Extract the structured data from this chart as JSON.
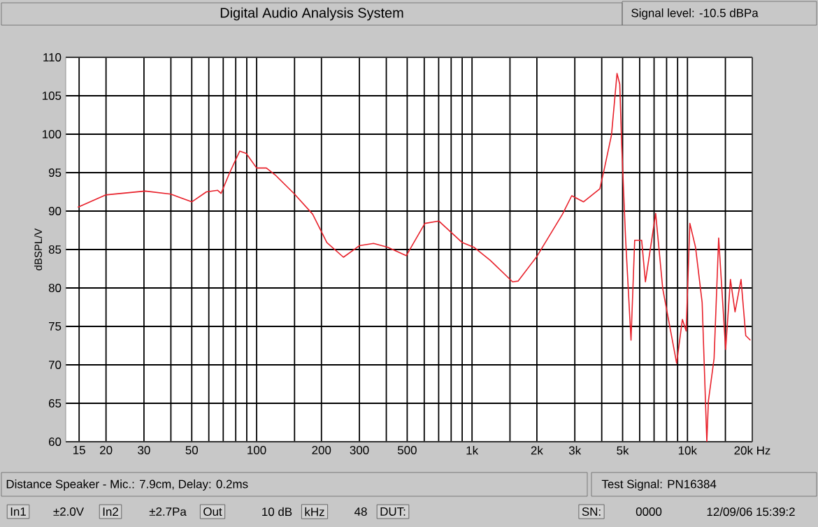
{
  "chart_data": {
    "type": "line",
    "title": "Digital Audio Analysis System",
    "ylabel": "dBSPL/V",
    "annotations": [
      "Signal level: -10.5 dBPa",
      "Distance Speaker - Mic.: 7.9cm, Delay: 0.2ms",
      "Test Signal: PN16384",
      "In1",
      "±2.0V",
      "In2",
      "±2.7Pa",
      "Out",
      "10 dB",
      "kHz",
      "48",
      "DUT:",
      "SN:",
      "0000",
      "12/09/06 15:39:2"
    ],
    "log": "x",
    "grid": true,
    "xlim": [
      13,
      20000
    ],
    "ylim": [
      60,
      110
    ],
    "xticks": [
      {
        "value": 15,
        "label": "15"
      },
      {
        "value": 20,
        "label": "20"
      },
      {
        "value": 30,
        "label": "30"
      },
      {
        "value": 40,
        "label": null
      },
      {
        "value": 50,
        "label": "50"
      },
      {
        "value": 60,
        "label": null
      },
      {
        "value": 70,
        "label": null
      },
      {
        "value": 80,
        "label": null
      },
      {
        "value": 90,
        "label": null
      },
      {
        "value": 100,
        "label": "100"
      },
      {
        "value": 150,
        "label": null
      },
      {
        "value": 200,
        "label": "200"
      },
      {
        "value": 300,
        "label": "300"
      },
      {
        "value": 400,
        "label": null
      },
      {
        "value": 500,
        "label": "500"
      },
      {
        "value": 600,
        "label": null
      },
      {
        "value": 700,
        "label": null
      },
      {
        "value": 800,
        "label": null
      },
      {
        "value": 900,
        "label": null
      },
      {
        "value": 1000,
        "label": "1k"
      },
      {
        "value": 1500,
        "label": null
      },
      {
        "value": 2000,
        "label": "2k"
      },
      {
        "value": 3000,
        "label": "3k"
      },
      {
        "value": 4000,
        "label": null
      },
      {
        "value": 5000,
        "label": "5k"
      },
      {
        "value": 6000,
        "label": null
      },
      {
        "value": 7000,
        "label": null
      },
      {
        "value": 8000,
        "label": null
      },
      {
        "value": 9000,
        "label": null
      },
      {
        "value": 10000,
        "label": "10k"
      },
      {
        "value": 15000,
        "label": null
      },
      {
        "value": 20000,
        "label": "20k Hz"
      }
    ],
    "yticks": [
      60,
      65,
      70,
      75,
      80,
      85,
      90,
      95,
      100,
      105,
      110
    ],
    "x": [
      14.8,
      19.9,
      30.4,
      40,
      50,
      58.5,
      66,
      68.4,
      75,
      83.5,
      89.5,
      100,
      111,
      122,
      149,
      182,
      212,
      253,
      300,
      349,
      406,
      495,
      604,
      702,
      901,
      1020,
      1214,
      1543,
      1638,
      2000,
      2630,
      2903,
      3290,
      3920,
      4120,
      4440,
      4710,
      4850,
      4950,
      5160,
      5470,
      5690,
      6130,
      6380,
      7120,
      7680,
      8910,
      9470,
      9860,
      10260,
      10900,
      11700,
      12300,
      12510,
      13290,
      13960,
      15040,
      15830,
      16630,
      17730,
      18650,
      19600
    ],
    "series": [
      {
        "color": "#e8202a",
        "values": [
          90.5,
          92.1,
          92.6,
          92.2,
          91.2,
          92.5,
          92.7,
          92.3,
          95.0,
          97.8,
          97.5,
          95.6,
          95.6,
          94.7,
          92.3,
          89.6,
          85.9,
          84.0,
          85.5,
          85.8,
          85.3,
          84.2,
          88.4,
          88.7,
          85.9,
          85.3,
          83.6,
          80.8,
          80.9,
          84.1,
          89.6,
          92.0,
          91.2,
          92.9,
          95.6,
          99.9,
          107.9,
          106.5,
          98.7,
          86.5,
          73.2,
          86.2,
          86.2,
          80.8,
          89.7,
          79.9,
          70.2,
          75.9,
          74.4,
          88.4,
          85.3,
          78.1,
          60,
          65.3,
          70.8,
          86.5,
          72.0,
          81.1,
          76.9,
          81.1,
          73.8,
          73.2
        ]
      }
    ]
  }
}
